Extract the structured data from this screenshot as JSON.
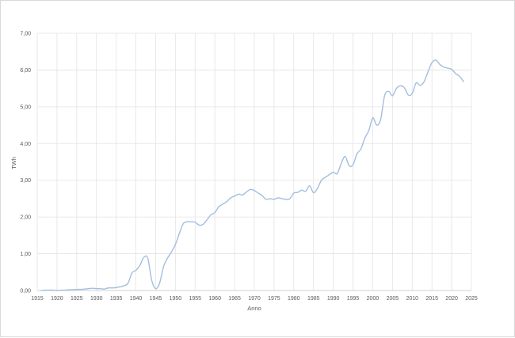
{
  "chart_data": {
    "type": "line",
    "title": "",
    "xlabel": "Anno",
    "ylabel": "TWh",
    "xlim": [
      1915,
      2025
    ],
    "ylim": [
      0,
      7
    ],
    "x_ticks": [
      "1915",
      "1920",
      "1925",
      "1930",
      "1935",
      "1940",
      "1945",
      "1950",
      "1955",
      "1960",
      "1965",
      "1970",
      "1975",
      "1980",
      "1985",
      "1990",
      "1995",
      "2000",
      "2005",
      "2010",
      "2015",
      "2020",
      "2025"
    ],
    "y_ticks": [
      "0,00",
      "1,00",
      "2,00",
      "3,00",
      "4,00",
      "5,00",
      "6,00",
      "7,00"
    ],
    "grid": true,
    "legend": "none",
    "series": [
      {
        "color": "#a4bedf",
        "x": [
          1916,
          1917,
          1918,
          1919,
          1920,
          1921,
          1922,
          1923,
          1924,
          1925,
          1926,
          1927,
          1928,
          1929,
          1930,
          1931,
          1932,
          1933,
          1934,
          1935,
          1936,
          1937,
          1938,
          1939,
          1940,
          1941,
          1942,
          1943,
          1944,
          1945,
          1946,
          1947,
          1948,
          1949,
          1950,
          1951,
          1952,
          1953,
          1954,
          1955,
          1956,
          1957,
          1958,
          1959,
          1960,
          1961,
          1962,
          1963,
          1964,
          1965,
          1966,
          1967,
          1968,
          1969,
          1970,
          1971,
          1972,
          1973,
          1974,
          1975,
          1976,
          1977,
          1978,
          1979,
          1980,
          1981,
          1982,
          1983,
          1984,
          1985,
          1986,
          1987,
          1988,
          1989,
          1990,
          1991,
          1992,
          1993,
          1994,
          1995,
          1996,
          1997,
          1998,
          1999,
          2000,
          2001,
          2002,
          2003,
          2004,
          2005,
          2006,
          2007,
          2008,
          2009,
          2010,
          2011,
          2012,
          2013,
          2014,
          2015,
          2016,
          2017,
          2018,
          2019,
          2020,
          2021,
          2022,
          2023
        ],
        "y": [
          0.0,
          0.01,
          0.01,
          0.01,
          0.0,
          0.01,
          0.01,
          0.02,
          0.02,
          0.03,
          0.03,
          0.04,
          0.05,
          0.06,
          0.05,
          0.05,
          0.04,
          0.07,
          0.07,
          0.08,
          0.1,
          0.13,
          0.2,
          0.48,
          0.55,
          0.68,
          0.9,
          0.88,
          0.28,
          0.05,
          0.2,
          0.65,
          0.88,
          1.05,
          1.25,
          1.55,
          1.82,
          1.87,
          1.87,
          1.86,
          1.78,
          1.8,
          1.92,
          2.06,
          2.12,
          2.28,
          2.35,
          2.42,
          2.52,
          2.57,
          2.62,
          2.6,
          2.68,
          2.75,
          2.72,
          2.65,
          2.58,
          2.48,
          2.5,
          2.48,
          2.52,
          2.5,
          2.48,
          2.5,
          2.65,
          2.67,
          2.73,
          2.7,
          2.85,
          2.66,
          2.78,
          3.0,
          3.08,
          3.15,
          3.22,
          3.18,
          3.45,
          3.65,
          3.4,
          3.42,
          3.72,
          3.85,
          4.15,
          4.35,
          4.7,
          4.5,
          4.65,
          5.3,
          5.42,
          5.3,
          5.5,
          5.57,
          5.52,
          5.32,
          5.36,
          5.65,
          5.58,
          5.68,
          5.95,
          6.2,
          6.27,
          6.15,
          6.08,
          6.05,
          6.02,
          5.9,
          5.83,
          5.68
        ]
      }
    ]
  }
}
